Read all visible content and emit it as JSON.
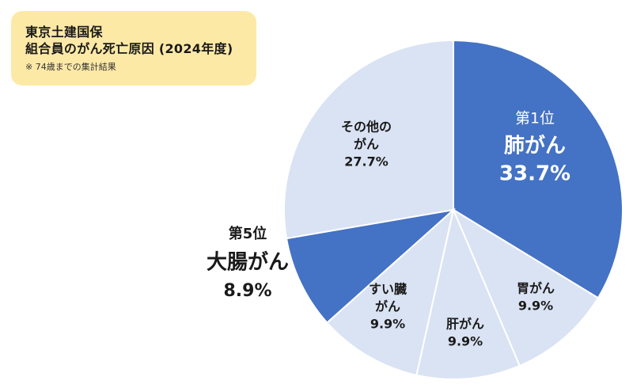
{
  "header": {
    "title_line1": "東京土建国保",
    "title_line2": "組合員のがん死亡原因 (2024年度)",
    "note": "※ 74歳までの集計結果"
  },
  "colors": {
    "highlight": "#4472c4",
    "normal": "#dae3f3",
    "title_bg": "#fde9a6",
    "highlight_text": "#ffffff",
    "normal_text": "#1a1a1a"
  },
  "chart_data": {
    "type": "pie",
    "start": "12 o'clock, clockwise",
    "slices": [
      {
        "label": "肺がん",
        "rank": "第1位",
        "value": 33.7,
        "value_label": "33.7%",
        "highlight": true,
        "label_lines": [
          "第1位",
          "肺がん",
          "33.7%"
        ]
      },
      {
        "label": "胃がん",
        "value": 9.9,
        "value_label": "9.9%",
        "highlight": false,
        "label_lines": [
          "胃がん",
          "9.9%"
        ]
      },
      {
        "label": "肝がん",
        "value": 9.9,
        "value_label": "9.9%",
        "highlight": false,
        "label_lines": [
          "肝がん",
          "9.9%"
        ]
      },
      {
        "label": "すい臓がん",
        "value": 9.9,
        "value_label": "9.9%",
        "highlight": false,
        "label_lines": [
          "すい臓",
          "がん",
          "9.9%"
        ]
      },
      {
        "label": "大腸がん",
        "rank": "第5位",
        "value": 8.9,
        "value_label": "8.9%",
        "highlight": true,
        "label_lines": [
          "第5位",
          "大腸がん",
          "8.9%"
        ]
      },
      {
        "label": "その他のがん",
        "value": 27.7,
        "value_label": "27.7%",
        "highlight": false,
        "label_lines": [
          "その他の",
          "がん",
          "27.7%"
        ]
      }
    ]
  }
}
